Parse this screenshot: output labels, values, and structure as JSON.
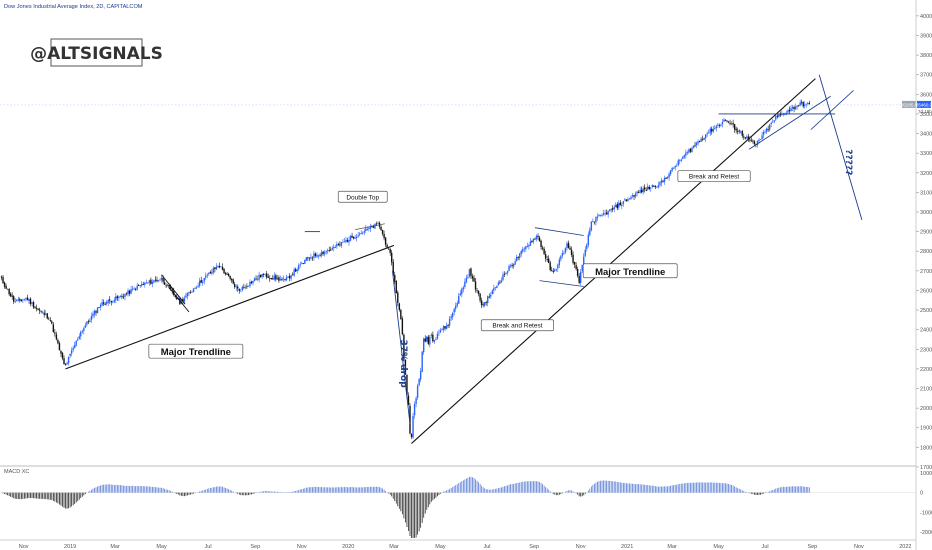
{
  "chart_data": {
    "type": "candlestick",
    "title": "Dow Jones Industrial Average Index, 2D, CAPITALCOM",
    "watermark": "@ALTSIGNALS",
    "price_axis": {
      "ticks": [
        17000,
        18000,
        19000,
        20000,
        21000,
        22000,
        23000,
        24000,
        25000,
        26000,
        27000,
        28000,
        29000,
        30000,
        31000,
        32000,
        33000,
        34000,
        35000,
        36000,
        37000,
        38000,
        39000,
        40000
      ],
      "ylim": [
        17100,
        40300
      ],
      "current_price_labels": [
        "35285.0",
        "35460.0",
        "7d 18h"
      ]
    },
    "time_axis": {
      "ticks": [
        {
          "label": "Nov",
          "date": "2018-11-01"
        },
        {
          "label": "2019",
          "date": "2019-01-01"
        },
        {
          "label": "Mar",
          "date": "2019-03-01"
        },
        {
          "label": "May",
          "date": "2019-05-01"
        },
        {
          "label": "Jul",
          "date": "2019-07-01"
        },
        {
          "label": "Sep",
          "date": "2019-09-01"
        },
        {
          "label": "Nov",
          "date": "2019-11-01"
        },
        {
          "label": "2020",
          "date": "2020-01-01"
        },
        {
          "label": "Mar",
          "date": "2020-03-01"
        },
        {
          "label": "May",
          "date": "2020-05-01"
        },
        {
          "label": "Jul",
          "date": "2020-07-01"
        },
        {
          "label": "Sep",
          "date": "2020-09-01"
        },
        {
          "label": "Nov",
          "date": "2020-11-01"
        },
        {
          "label": "2021",
          "date": "2021-01-01"
        },
        {
          "label": "Mar",
          "date": "2021-03-01"
        },
        {
          "label": "May",
          "date": "2021-05-01"
        },
        {
          "label": "Jul",
          "date": "2021-07-01"
        },
        {
          "label": "Sep",
          "date": "2021-09-01"
        },
        {
          "label": "Nov",
          "date": "2021-11-01"
        },
        {
          "label": "2022",
          "date": "2022-01-01"
        }
      ],
      "xlim": [
        "2018-10-01",
        "2022-01-15"
      ]
    },
    "price_path": [
      [
        "2018-10-01",
        26700
      ],
      [
        "2018-10-20",
        25400
      ],
      [
        "2018-11-05",
        25600
      ],
      [
        "2018-11-20",
        25000
      ],
      [
        "2018-12-05",
        24600
      ],
      [
        "2018-12-25",
        22100
      ],
      [
        "2019-01-15",
        23900
      ],
      [
        "2019-02-10",
        25300
      ],
      [
        "2019-03-10",
        25700
      ],
      [
        "2019-04-05",
        26300
      ],
      [
        "2019-05-01",
        26600
      ],
      [
        "2019-05-25",
        25400
      ],
      [
        "2019-06-20",
        26400
      ],
      [
        "2019-07-15",
        27300
      ],
      [
        "2019-08-10",
        26000
      ],
      [
        "2019-09-10",
        26800
      ],
      [
        "2019-10-10",
        26500
      ],
      [
        "2019-11-10",
        27700
      ],
      [
        "2019-12-10",
        28100
      ],
      [
        "2020-01-05",
        28700
      ],
      [
        "2020-02-10",
        29400
      ],
      [
        "2020-02-25",
        27800
      ],
      [
        "2020-03-10",
        24500
      ],
      [
        "2020-03-23",
        18600
      ],
      [
        "2020-04-10",
        23500
      ],
      [
        "2020-05-10",
        24200
      ],
      [
        "2020-06-08",
        27000
      ],
      [
        "2020-06-25",
        25200
      ],
      [
        "2020-07-25",
        26900
      ],
      [
        "2020-08-25",
        28400
      ],
      [
        "2020-09-05",
        28800
      ],
      [
        "2020-09-25",
        26800
      ],
      [
        "2020-10-15",
        28400
      ],
      [
        "2020-10-30",
        26500
      ],
      [
        "2020-11-15",
        29500
      ],
      [
        "2020-12-15",
        30200
      ],
      [
        "2021-01-15",
        31000
      ],
      [
        "2021-02-15",
        31500
      ],
      [
        "2021-03-15",
        32800
      ],
      [
        "2021-04-15",
        34000
      ],
      [
        "2021-05-10",
        34700
      ],
      [
        "2021-06-18",
        33400
      ],
      [
        "2021-07-15",
        34800
      ],
      [
        "2021-08-15",
        35500
      ],
      [
        "2021-08-28",
        35460
      ]
    ],
    "annotations": [
      {
        "label": "Double Top",
        "date": "2020-01-20",
        "price": 30650
      },
      {
        "label": "Major Trendline",
        "date": "2019-06-15",
        "price": 22700
      },
      {
        "label": "Major Trendline",
        "date": "2021-01-05",
        "price": 26800
      },
      {
        "label": "Break and Retest",
        "date": "2020-08-10",
        "price": 24100
      },
      {
        "label": "Break and Retest",
        "date": "2021-04-25",
        "price": 31700
      },
      {
        "label": "37% drop",
        "date": "2020-03-10",
        "price": 23500
      },
      {
        "label": "?????",
        "date": "2021-10-15",
        "price": 33200
      }
    ],
    "macd": {
      "label": "MACD XC",
      "ticks": [
        1000,
        0,
        -1000,
        -2000
      ],
      "ylim": [
        -2300,
        1300
      ]
    },
    "grid": false,
    "legend": "none",
    "colors": {
      "up_candle": "#2962ff",
      "down_candle": "#111111",
      "trendline": "#111111",
      "blue_annotation": "#1a3d8f",
      "watermark_border": "#555555"
    }
  }
}
